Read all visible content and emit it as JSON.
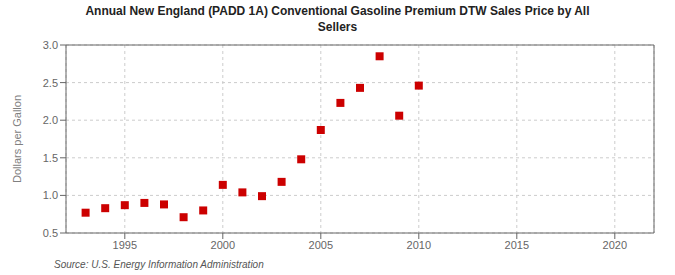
{
  "chart_data": {
    "type": "scatter",
    "title": "Annual New England (PADD 1A) Conventional Gasoline Premium DTW Sales Price by All\nSellers",
    "ylabel": "Dollars per Gallon",
    "source": "Source: U.S. Energy Information Administration",
    "x": [
      1993,
      1994,
      1995,
      1996,
      1997,
      1998,
      1999,
      2000,
      2001,
      2002,
      2003,
      2004,
      2005,
      2006,
      2007,
      2008,
      2009,
      2010
    ],
    "values": [
      0.77,
      0.83,
      0.87,
      0.9,
      0.88,
      0.71,
      0.8,
      1.14,
      1.04,
      0.99,
      1.18,
      1.48,
      1.87,
      2.23,
      2.43,
      2.85,
      2.06,
      2.46
    ],
    "color": "#cc0000",
    "marker": "square",
    "xlim": [
      1992,
      2022
    ],
    "ylim": [
      0.5,
      3.0
    ],
    "xticks": [
      1995,
      2000,
      2005,
      2010,
      2015,
      2020
    ],
    "yticks": [
      0.5,
      {
        "value": 1,
        "label": "1.0"
      },
      1.5,
      {
        "value": 2,
        "label": "2.0"
      },
      2.5,
      {
        "value": 3,
        "label": "3.0"
      }
    ],
    "grid": true
  }
}
